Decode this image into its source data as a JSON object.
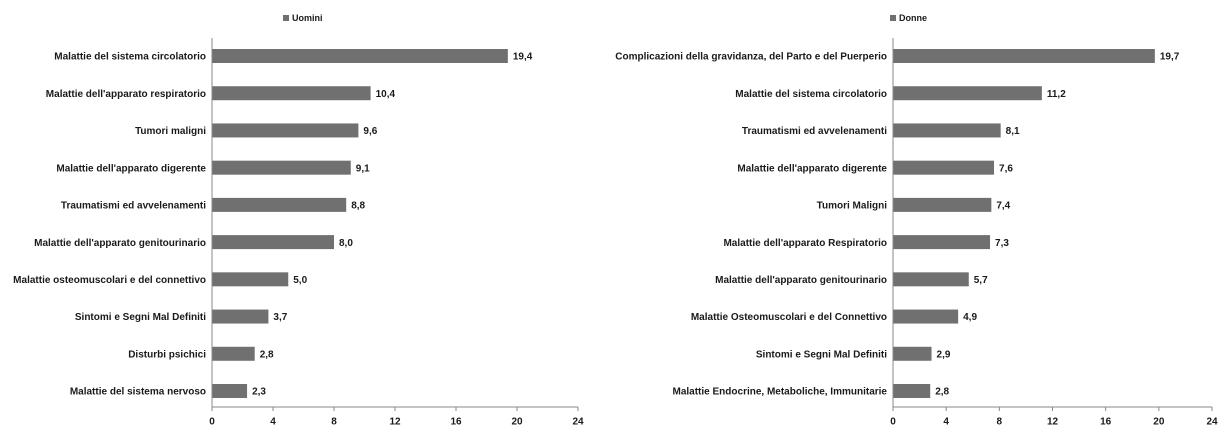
{
  "chart_data": [
    {
      "type": "bar",
      "orientation": "horizontal",
      "legend": "top",
      "series": [
        {
          "name": "Uomini",
          "color": "#707070",
          "values": [
            19.4,
            10.4,
            9.6,
            9.1,
            8.8,
            8.0,
            5.0,
            3.7,
            2.8,
            2.3
          ],
          "value_labels": [
            "19,4",
            "10,4",
            "9,6",
            "9,1",
            "8,8",
            "8,0",
            "5,0",
            "3,7",
            "2,8",
            "2,3"
          ]
        }
      ],
      "categories": [
        "Malattie del sistema circolatorio",
        "Malattie dell'apparato respiratorio",
        "Tumori maligni",
        "Malattie dell'apparato digerente",
        "Traumatismi ed avvelenamenti",
        "Malattie dell'apparato genitourinario",
        "Malattie osteomuscolari e del connettivo",
        "Sintomi e Segni Mal Definiti",
        "Disturbi psichici",
        "Malattie del sistema nervoso"
      ],
      "xlim": [
        0,
        24
      ],
      "xticks": [
        0,
        4,
        8,
        12,
        16,
        20,
        24
      ]
    },
    {
      "type": "bar",
      "orientation": "horizontal",
      "legend": "top",
      "series": [
        {
          "name": "Donne",
          "color": "#707070",
          "values": [
            19.7,
            11.2,
            8.1,
            7.6,
            7.4,
            7.3,
            5.7,
            4.9,
            2.9,
            2.8
          ],
          "value_labels": [
            "19,7",
            "11,2",
            "8,1",
            "7,6",
            "7,4",
            "7,3",
            "5,7",
            "4,9",
            "2,9",
            "2,8"
          ]
        }
      ],
      "categories": [
        "Complicazioni della gravidanza, del Parto e del Puerperio",
        "Malattie del sistema circolatorio",
        "Traumatismi ed avvelenamenti",
        "Malattie dell'apparato digerente",
        "Tumori Maligni",
        "Malattie dell'apparato Respiratorio",
        "Malattie dell'apparato genitourinario",
        "Malattie Osteomuscolari e del Connettivo",
        "Sintomi e Segni Mal Definiti",
        "Malattie Endocrine, Metaboliche, Immunitarie"
      ],
      "xlim": [
        0,
        24
      ],
      "xticks": [
        0,
        4,
        8,
        12,
        16,
        20,
        24
      ]
    }
  ]
}
